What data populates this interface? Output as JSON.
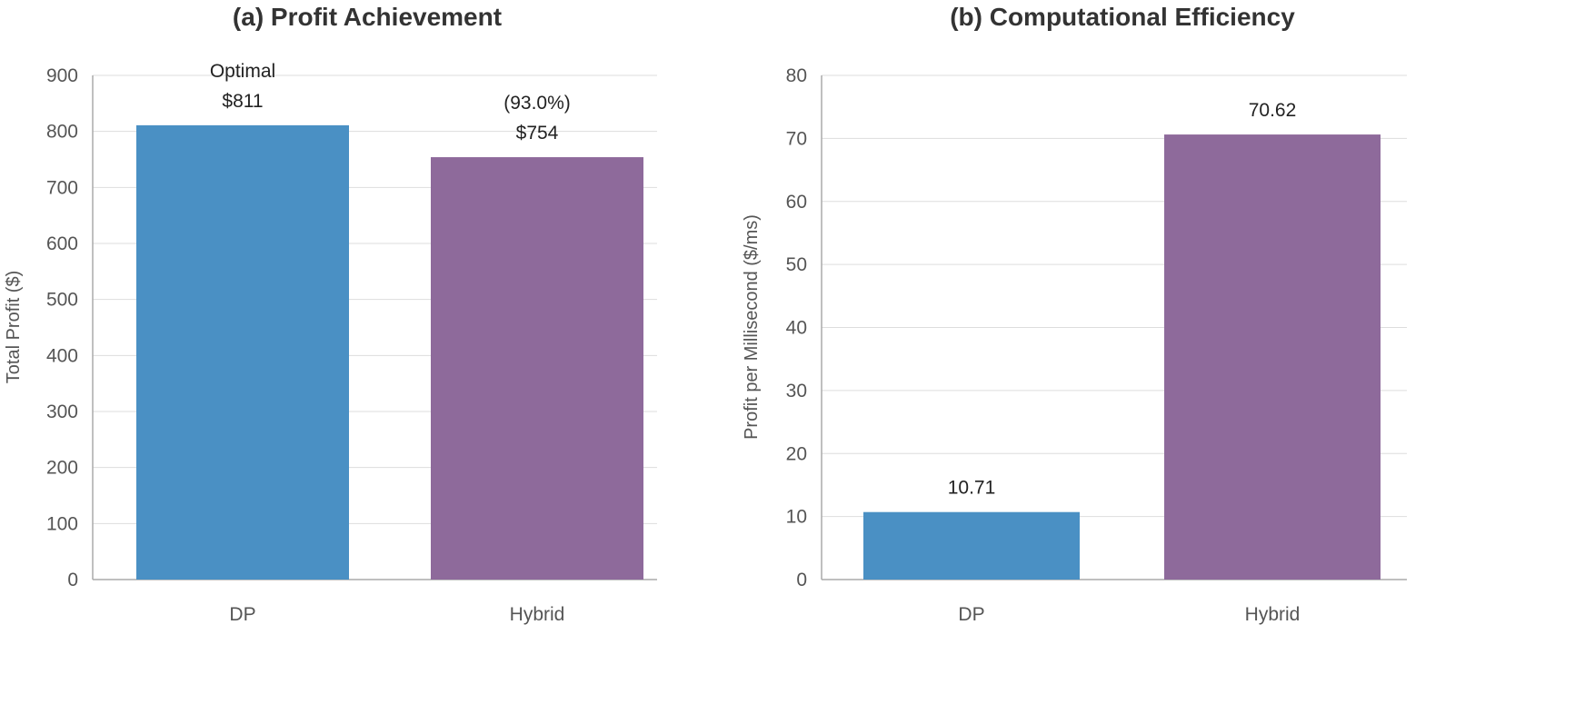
{
  "chart_data": [
    {
      "type": "bar",
      "title": "(a) Profit Achievement",
      "xlabel": "",
      "ylabel": "Total Profit ($)",
      "categories": [
        "DP",
        "Hybrid"
      ],
      "values": [
        811,
        754
      ],
      "data_labels": [
        [
          "Optimal",
          "$811"
        ],
        [
          "(93.0%)",
          "$754"
        ]
      ],
      "ylim": [
        0,
        900
      ],
      "yticks": [
        0,
        100,
        200,
        300,
        400,
        500,
        600,
        700,
        800,
        900
      ],
      "colors": [
        "#4a90c4",
        "#8e6a9b"
      ],
      "grid": true,
      "legend": "none"
    },
    {
      "type": "bar",
      "title": "(b) Computational Efficiency",
      "xlabel": "",
      "ylabel": "Profit per Millisecond ($/ms)",
      "categories": [
        "DP",
        "Hybrid"
      ],
      "values": [
        10.71,
        70.62
      ],
      "data_labels": [
        [
          "10.71"
        ],
        [
          "70.62"
        ]
      ],
      "ylim": [
        0,
        80
      ],
      "yticks": [
        0,
        10,
        20,
        30,
        40,
        50,
        60,
        70,
        80
      ],
      "colors": [
        "#4a90c4",
        "#8e6a9b"
      ],
      "grid": true,
      "legend": "none"
    }
  ]
}
